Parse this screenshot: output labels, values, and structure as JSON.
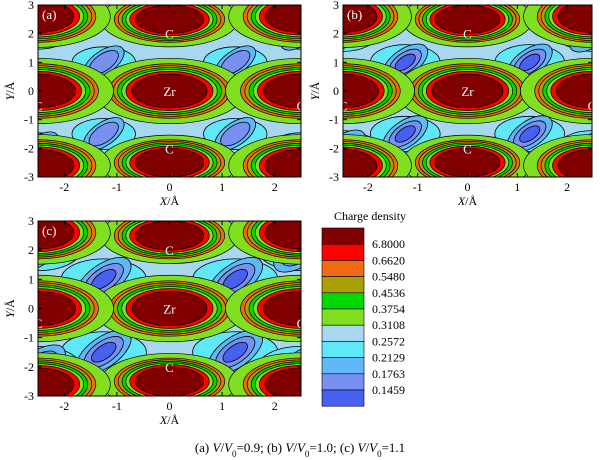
{
  "chart_data": {
    "type": "contour",
    "panels": [
      {
        "id": "a",
        "label": "(a)",
        "blue_strength": 0.15
      },
      {
        "id": "b",
        "label": "(b)",
        "blue_strength": 0.55
      },
      {
        "id": "c",
        "label": "(c)",
        "blue_strength": 1.0
      }
    ],
    "xlabel_italic": "X",
    "xlabel_unit": "/Å",
    "ylabel_italic": "Y",
    "ylabel_unit": "/Å",
    "xlim": [
      -2.5,
      2.5
    ],
    "ylim": [
      -3,
      3
    ],
    "xticks": [
      -2,
      -1,
      0,
      1,
      2
    ],
    "yticks": [
      -3,
      -2,
      -1,
      0,
      1,
      2,
      3
    ],
    "atoms": [
      {
        "label": "C",
        "x": 0,
        "y": 2.0
      },
      {
        "label": "C",
        "x": 0,
        "y": -2.0
      },
      {
        "label": "Zr",
        "x": 0,
        "y": 0
      },
      {
        "label": "C",
        "x": -2.5,
        "y": -0.5
      },
      {
        "label": "C",
        "x": 2.5,
        "y": -0.5
      }
    ],
    "legend": {
      "title": "Charge density",
      "levels": [
        {
          "value": "6.8000",
          "color": "#800000"
        },
        {
          "value": "0.6620",
          "color": "#ff0000"
        },
        {
          "value": "0.5480",
          "color": "#ef6a10"
        },
        {
          "value": "0.4536",
          "color": "#a8a000"
        },
        {
          "value": "0.3754",
          "color": "#00d800"
        },
        {
          "value": "0.3108",
          "color": "#80e020"
        },
        {
          "value": "0.2572",
          "color": "#a8d8f0"
        },
        {
          "value": "0.2129",
          "color": "#60e8f8"
        },
        {
          "value": "0.1763",
          "color": "#60b8f8"
        },
        {
          "value": "0.1459",
          "color": "#7890f0"
        },
        {
          "value": "",
          "color": "#4860f0"
        }
      ]
    },
    "caption": {
      "parts": [
        {
          "text": "(a) ",
          "italic": false
        },
        {
          "text": "V",
          "italic": true
        },
        {
          "text": "/",
          "italic": false
        },
        {
          "text": "V",
          "italic": true
        },
        {
          "text": "0",
          "italic": false,
          "sub": true
        },
        {
          "text": "=0.9; (b) ",
          "italic": false
        },
        {
          "text": "V",
          "italic": true
        },
        {
          "text": "/",
          "italic": false
        },
        {
          "text": "V",
          "italic": true
        },
        {
          "text": "0",
          "italic": false,
          "sub": true
        },
        {
          "text": "=1.0; (c) ",
          "italic": false
        },
        {
          "text": "V",
          "italic": true
        },
        {
          "text": "/",
          "italic": false
        },
        {
          "text": "V",
          "italic": true
        },
        {
          "text": "0",
          "italic": false,
          "sub": true
        },
        {
          "text": "=1.1",
          "italic": false
        }
      ]
    }
  }
}
